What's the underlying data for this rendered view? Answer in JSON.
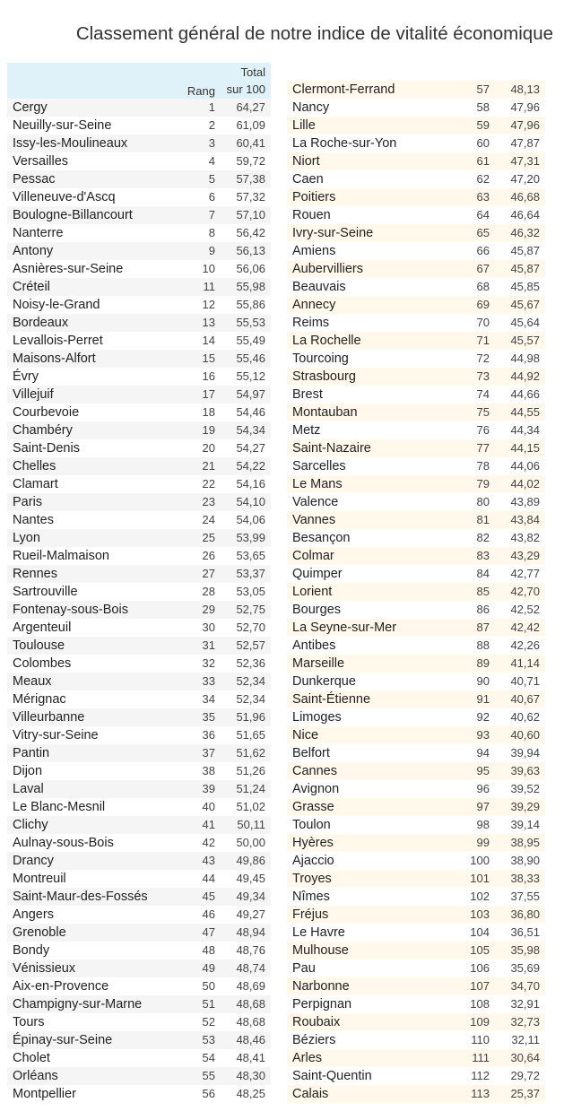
{
  "chart_data": {
    "type": "table",
    "title": "Classement général de notre indice de vitalité économique",
    "columns": [
      "",
      "Rang",
      "Total sur 100"
    ],
    "column_header_rank": "Rang",
    "column_header_total_line1": "Total",
    "column_header_total_line2": "sur 100",
    "rows": [
      [
        "Cergy",
        "1",
        "64,27"
      ],
      [
        "Neuilly-sur-Seine",
        "2",
        "61,09"
      ],
      [
        "Issy-les-Moulineaux",
        "3",
        "60,41"
      ],
      [
        "Versailles",
        "4",
        "59,72"
      ],
      [
        "Pessac",
        "5",
        "57,38"
      ],
      [
        "Villeneuve-d'Ascq",
        "6",
        "57,32"
      ],
      [
        "Boulogne-Billancourt",
        "7",
        "57,10"
      ],
      [
        "Nanterre",
        "8",
        "56,42"
      ],
      [
        "Antony",
        "9",
        "56,13"
      ],
      [
        "Asnières-sur-Seine",
        "10",
        "56,06"
      ],
      [
        "Créteil",
        "11",
        "55,98"
      ],
      [
        "Noisy-le-Grand",
        "12",
        "55,86"
      ],
      [
        "Bordeaux",
        "13",
        "55,53"
      ],
      [
        "Levallois-Perret",
        "14",
        "55,49"
      ],
      [
        "Maisons-Alfort",
        "15",
        "55,46"
      ],
      [
        "Évry",
        "16",
        "55,12"
      ],
      [
        "Villejuif",
        "17",
        "54,97"
      ],
      [
        "Courbevoie",
        "18",
        "54,46"
      ],
      [
        "Chambéry",
        "19",
        "54,34"
      ],
      [
        "Saint-Denis",
        "20",
        "54,27"
      ],
      [
        "Chelles",
        "21",
        "54,22"
      ],
      [
        "Clamart",
        "22",
        "54,16"
      ],
      [
        "Paris",
        "23",
        "54,10"
      ],
      [
        "Nantes",
        "24",
        "54,06"
      ],
      [
        "Lyon",
        "25",
        "53,99"
      ],
      [
        "Rueil-Malmaison",
        "26",
        "53,65"
      ],
      [
        "Rennes",
        "27",
        "53,37"
      ],
      [
        "Sartrouville",
        "28",
        "53,05"
      ],
      [
        "Fontenay-sous-Bois",
        "29",
        "52,75"
      ],
      [
        "Argenteuil",
        "30",
        "52,70"
      ],
      [
        "Toulouse",
        "31",
        "52,57"
      ],
      [
        "Colombes",
        "32",
        "52,36"
      ],
      [
        "Meaux",
        "33",
        "52,34"
      ],
      [
        "Mérignac",
        "34",
        "52,34"
      ],
      [
        "Villeurbanne",
        "35",
        "51,96"
      ],
      [
        "Vitry-sur-Seine",
        "36",
        "51,65"
      ],
      [
        "Pantin",
        "37",
        "51,62"
      ],
      [
        "Dijon",
        "38",
        "51,26"
      ],
      [
        "Laval",
        "39",
        "51,24"
      ],
      [
        "Le Blanc-Mesnil",
        "40",
        "51,02"
      ],
      [
        "Clichy",
        "41",
        "50,11"
      ],
      [
        "Aulnay-sous-Bois",
        "42",
        "50,00"
      ],
      [
        "Drancy",
        "43",
        "49,86"
      ],
      [
        "Montreuil",
        "44",
        "49,45"
      ],
      [
        "Saint-Maur-des-Fossés",
        "45",
        "49,34"
      ],
      [
        "Angers",
        "46",
        "49,27"
      ],
      [
        "Grenoble",
        "47",
        "48,94"
      ],
      [
        "Bondy",
        "48",
        "48,76"
      ],
      [
        "Vénissieux",
        "49",
        "48,74"
      ],
      [
        "Aix-en-Provence",
        "50",
        "48,69"
      ],
      [
        "Champigny-sur-Marne",
        "51",
        "48,68"
      ],
      [
        "Tours",
        "52",
        "48,68"
      ],
      [
        "Épinay-sur-Seine",
        "53",
        "48,46"
      ],
      [
        "Cholet",
        "54",
        "48,41"
      ],
      [
        "Orléans",
        "55",
        "48,30"
      ],
      [
        "Montpellier",
        "56",
        "48,25"
      ],
      [
        "Clermont-Ferrand",
        "57",
        "48,13"
      ],
      [
        "Nancy",
        "58",
        "47,96"
      ],
      [
        "Lille",
        "59",
        "47,96"
      ],
      [
        "La Roche-sur-Yon",
        "60",
        "47,87"
      ],
      [
        "Niort",
        "61",
        "47,31"
      ],
      [
        "Caen",
        "62",
        "47,20"
      ],
      [
        "Poitiers",
        "63",
        "46,68"
      ],
      [
        "Rouen",
        "64",
        "46,64"
      ],
      [
        "Ivry-sur-Seine",
        "65",
        "46,32"
      ],
      [
        "Amiens",
        "66",
        "45,87"
      ],
      [
        "Aubervilliers",
        "67",
        "45,87"
      ],
      [
        "Beauvais",
        "68",
        "45,85"
      ],
      [
        "Annecy",
        "69",
        "45,67"
      ],
      [
        "Reims",
        "70",
        "45,64"
      ],
      [
        "La Rochelle",
        "71",
        "45,57"
      ],
      [
        "Tourcoing",
        "72",
        "44,98"
      ],
      [
        "Strasbourg",
        "73",
        "44,92"
      ],
      [
        "Brest",
        "74",
        "44,66"
      ],
      [
        "Montauban",
        "75",
        "44,55"
      ],
      [
        "Metz",
        "76",
        "44,34"
      ],
      [
        "Saint-Nazaire",
        "77",
        "44,15"
      ],
      [
        "Sarcelles",
        "78",
        "44,06"
      ],
      [
        "Le Mans",
        "79",
        "44,02"
      ],
      [
        "Valence",
        "80",
        "43,89"
      ],
      [
        "Vannes",
        "81",
        "43,84"
      ],
      [
        "Besançon",
        "82",
        "43,82"
      ],
      [
        "Colmar",
        "83",
        "43,29"
      ],
      [
        "Quimper",
        "84",
        "42,77"
      ],
      [
        "Lorient",
        "85",
        "42,70"
      ],
      [
        "Bourges",
        "86",
        "42,52"
      ],
      [
        "La Seyne-sur-Mer",
        "87",
        "42,42"
      ],
      [
        "Antibes",
        "88",
        "42,26"
      ],
      [
        "Marseille",
        "89",
        "41,14"
      ],
      [
        "Dunkerque",
        "90",
        "40,71"
      ],
      [
        "Saint-Étienne",
        "91",
        "40,67"
      ],
      [
        "Limoges",
        "92",
        "40,62"
      ],
      [
        "Nice",
        "93",
        "40,60"
      ],
      [
        "Belfort",
        "94",
        "39,94"
      ],
      [
        "Cannes",
        "95",
        "39,63"
      ],
      [
        "Avignon",
        "96",
        "39,52"
      ],
      [
        "Grasse",
        "97",
        "39,29"
      ],
      [
        "Toulon",
        "98",
        "39,14"
      ],
      [
        "Hyères",
        "99",
        "38,95"
      ],
      [
        "Ajaccio",
        "100",
        "38,90"
      ],
      [
        "Troyes",
        "101",
        "38,33"
      ],
      [
        "Nîmes",
        "102",
        "37,55"
      ],
      [
        "Fréjus",
        "103",
        "36,80"
      ],
      [
        "Le Havre",
        "104",
        "36,51"
      ],
      [
        "Mulhouse",
        "105",
        "35,98"
      ],
      [
        "Pau",
        "106",
        "35,69"
      ],
      [
        "Narbonne",
        "107",
        "34,70"
      ],
      [
        "Perpignan",
        "108",
        "32,91"
      ],
      [
        "Roubaix",
        "109",
        "32,73"
      ],
      [
        "Béziers",
        "110",
        "32,11"
      ],
      [
        "Arles",
        "111",
        "30,64"
      ],
      [
        "Saint-Quentin",
        "112",
        "29,72"
      ],
      [
        "Calais",
        "113",
        "25,37"
      ]
    ]
  }
}
